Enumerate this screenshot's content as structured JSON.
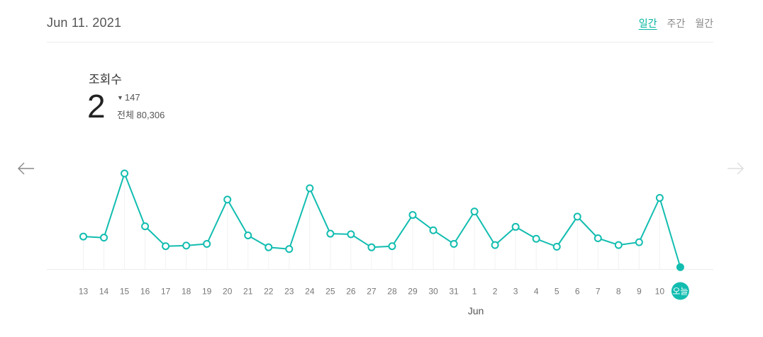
{
  "header": {
    "date": "Jun 11. 2021",
    "tabs": [
      {
        "label": "일간",
        "active": true
      },
      {
        "label": "주간",
        "active": false
      },
      {
        "label": "월간",
        "active": false
      }
    ]
  },
  "metric": {
    "label": "조회수",
    "value": "2",
    "change": "147",
    "total": "전체 80,306"
  },
  "colors": {
    "accent": "#12bdb0",
    "axis_text": "#777777",
    "grid": "#eeeeee"
  },
  "chart_data": {
    "type": "line",
    "categories": [
      "13",
      "14",
      "15",
      "16",
      "17",
      "18",
      "19",
      "20",
      "21",
      "22",
      "23",
      "24",
      "25",
      "26",
      "27",
      "28",
      "29",
      "30",
      "31",
      "1",
      "2",
      "3",
      "4",
      "5",
      "6",
      "7",
      "8",
      "9",
      "10",
      "오늘"
    ],
    "values": [
      56,
      54,
      167,
      74,
      39,
      40,
      43,
      121,
      58,
      37,
      34,
      141,
      61,
      60,
      37,
      39,
      94,
      67,
      43,
      100,
      41,
      73,
      52,
      38,
      91,
      53,
      41,
      46,
      124,
      2
    ],
    "month_label": "Jun",
    "today_label": "오늘",
    "ylim": [
      0,
      170
    ],
    "grid": false
  }
}
